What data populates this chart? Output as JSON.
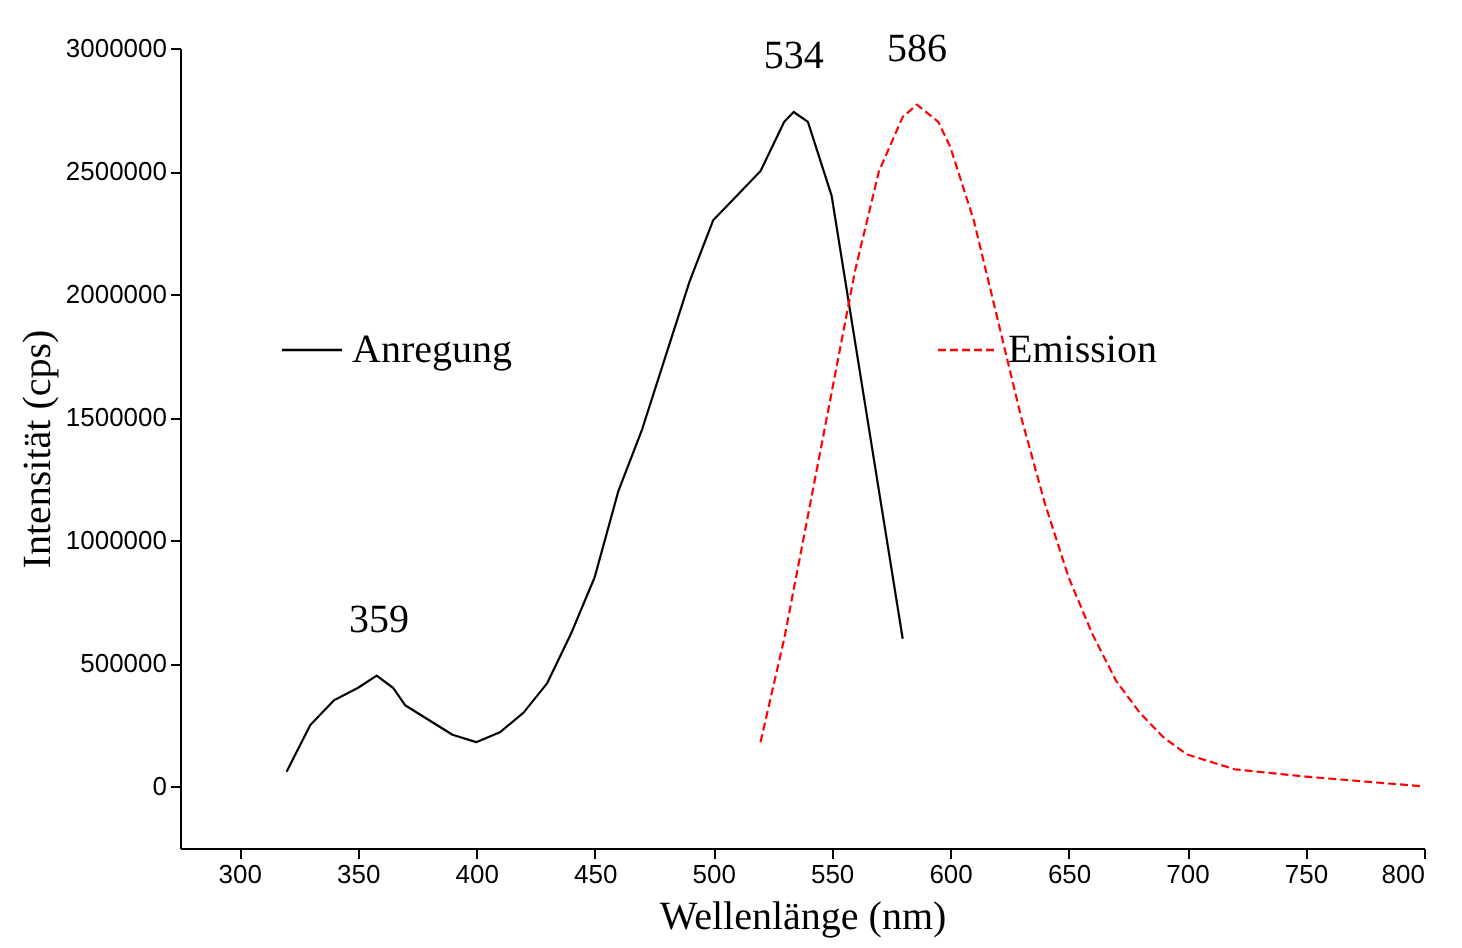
{
  "chart_data": {
    "type": "line",
    "xlabel": "Wellenlänge (nm)",
    "ylabel": "Intensität (cps)",
    "xlim": [
      275,
      800
    ],
    "xticks": [
      300,
      350,
      400,
      450,
      500,
      550,
      600,
      650,
      700,
      750,
      800
    ],
    "ylim": [
      -250000,
      3000000
    ],
    "yticks": [
      0,
      500000,
      1000000,
      1500000,
      2000000,
      2500000,
      3000000
    ],
    "grid": false,
    "legend": "top",
    "marker": "none",
    "series": [
      {
        "name": "Anregung",
        "color": "#000000",
        "line_style": "solid",
        "x": [
          320,
          330,
          340,
          350,
          358,
          365,
          370,
          380,
          390,
          400,
          410,
          420,
          430,
          440,
          450,
          460,
          470,
          480,
          490,
          500,
          510,
          520,
          530,
          534,
          540,
          550,
          560,
          570,
          580
        ],
        "values": [
          60000,
          250000,
          350000,
          400000,
          450000,
          400000,
          330000,
          270000,
          210000,
          180000,
          220000,
          300000,
          420000,
          620000,
          850000,
          1200000,
          1450000,
          1750000,
          2050000,
          2300000,
          2400000,
          2500000,
          2700000,
          2740000,
          2700000,
          2400000,
          1800000,
          1200000,
          600000
        ]
      },
      {
        "name": "Emission",
        "color": "#ff0000",
        "line_style": "dashed",
        "x": [
          520,
          530,
          540,
          550,
          560,
          570,
          580,
          586,
          595,
          600,
          610,
          620,
          630,
          640,
          650,
          660,
          670,
          680,
          690,
          700,
          720,
          750,
          800
        ],
        "values": [
          180000,
          600000,
          1100000,
          1600000,
          2100000,
          2500000,
          2720000,
          2770000,
          2700000,
          2600000,
          2300000,
          1900000,
          1500000,
          1150000,
          850000,
          620000,
          430000,
          300000,
          200000,
          130000,
          70000,
          40000,
          0
        ]
      }
    ],
    "annotations": [
      {
        "text": "359",
        "x": 359,
        "y": 450000
      },
      {
        "text": "534",
        "x": 534,
        "y": 2740000
      },
      {
        "text": "586",
        "x": 586,
        "y": 2770000
      }
    ]
  }
}
